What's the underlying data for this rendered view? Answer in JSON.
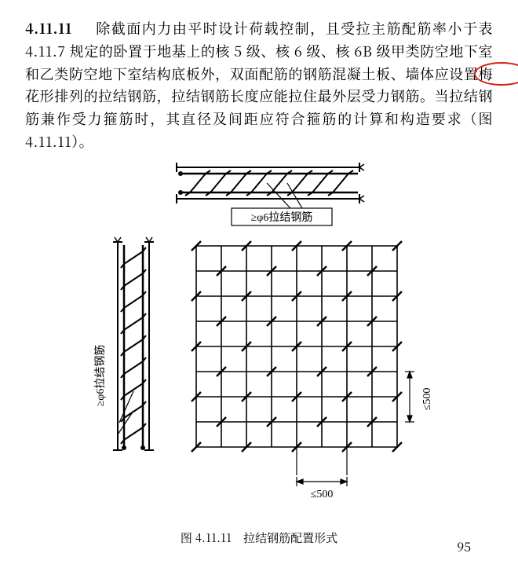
{
  "section_number": "4.11.11",
  "para_leading": "　除截面内力由平时设计荷载控制，且受拉主筋配筋率小于表 4.11.7 规定的卧置于地基上的核 5 级、核 6 级、核 6B 级甲类防空地下室和乙类防空地下室结构底板外，双面配筋的钢筋混凝土板、墙体应设置",
  "highlight_text": "梅花形",
  "para_tail": "排列的拉结钢筋，拉结钢筋长度应能拉住最外层受力钢筋。当拉结钢筋兼作受力箍筋时，其直径及间距应符合箍筋的计算和构造要求（图 4.11.11）。",
  "top_label": "≥φ6拉结钢筋",
  "left_label": "≥φ6拉结钢筋",
  "dim_label": "≤500",
  "caption": "图 4.11.11　拉结钢筋配置形式",
  "page_number": "95",
  "highlight_color": "#d91e18"
}
